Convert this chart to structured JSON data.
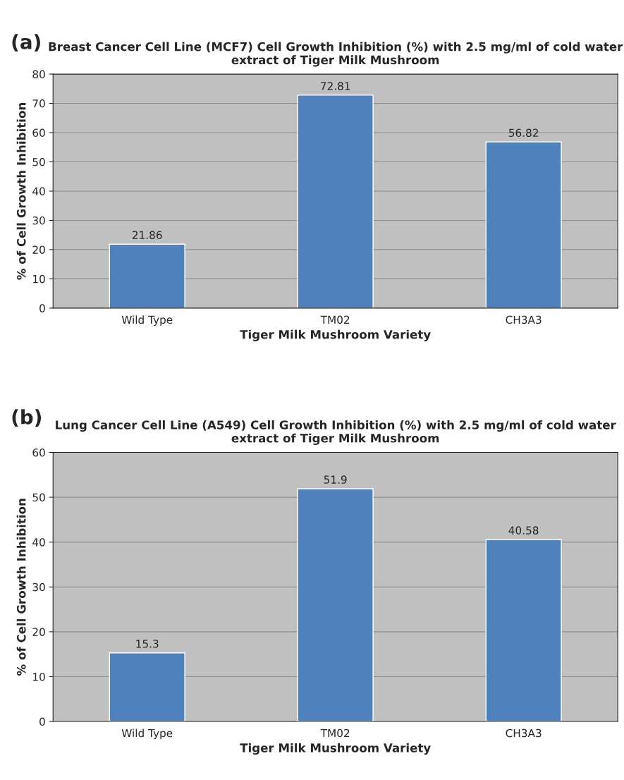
{
  "chart_data": [
    {
      "type": "bar",
      "title": "Breast Cancer Cell Line (MCF7) Cell Growth Inhibition (%) with 2.5 mg/ml of cold water extract of Tiger Milk Mushroom",
      "xlabel": "Tiger Milk Mushroom Variety",
      "ylabel": "% of Cell Growth Inhibition",
      "annotations": [
        "(a)"
      ],
      "categories": [
        "Wild Type",
        "TM02",
        "CH3A3"
      ],
      "values": [
        21.86,
        72.81,
        56.82
      ],
      "color": "#4f81bd",
      "ylim": [
        0,
        80
      ],
      "yticks": [
        0,
        10,
        20,
        30,
        40,
        50,
        60,
        70,
        80
      ],
      "grid": "y",
      "data_labels": true
    },
    {
      "type": "bar",
      "title": "Lung Cancer Cell Line (A549) Cell Growth Inhibition (%) with 2.5 mg/ml of cold water extract of Tiger Milk Mushroom",
      "xlabel": "Tiger Milk Mushroom Variety",
      "ylabel": "% of Cell Growth Inhibition",
      "annotations": [
        "(b)"
      ],
      "categories": [
        "Wild Type",
        "TM02",
        "CH3A3"
      ],
      "values": [
        15.3,
        51.9,
        40.58
      ],
      "color": "#4f81bd",
      "ylim": [
        0,
        60
      ],
      "yticks": [
        0,
        10,
        20,
        30,
        40,
        50,
        60
      ],
      "grid": "y",
      "data_labels": true
    }
  ]
}
